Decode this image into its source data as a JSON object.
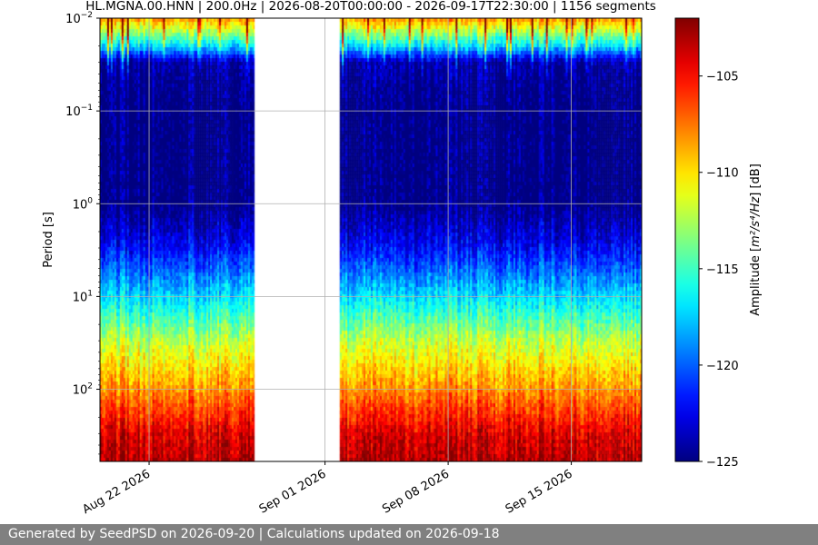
{
  "chart_data": {
    "type": "heatmap",
    "title": "HL.MGNA.00.HNN | 200.0Hz | 2026-08-20T00:00:00 - 2026-09-17T22:30:00 | 1156 segments",
    "ylabel": "Period [s]",
    "y_scale": "log",
    "y_inverted": true,
    "ylim": [
      0.01,
      600
    ],
    "y_ticks": [
      {
        "value": 0.01,
        "base": "10",
        "exp": "−2"
      },
      {
        "value": 0.1,
        "base": "10",
        "exp": "−1"
      },
      {
        "value": 1,
        "base": "10",
        "exp": "0"
      },
      {
        "value": 10,
        "base": "10",
        "exp": "1"
      },
      {
        "value": 100,
        "base": "10",
        "exp": "2"
      }
    ],
    "xlim": [
      "2026-08-19T05:00",
      "2026-09-19T00:00"
    ],
    "x_ticks": [
      {
        "date": "2026-08-22",
        "label": "Aug 22 2026"
      },
      {
        "date": "2026-09-01",
        "label": "Sep 01 2026"
      },
      {
        "date": "2026-09-08",
        "label": "Sep 08 2026"
      },
      {
        "date": "2026-09-15",
        "label": "Sep 15 2026"
      }
    ],
    "data_intervals": [
      {
        "start": "2026-08-19T05:00",
        "end": "2026-08-28T00:00"
      },
      {
        "start": "2026-09-01T20:00",
        "end": "2026-09-19T00:00"
      }
    ],
    "grid": true,
    "colorbar": {
      "label_prefix": "Amplitude [",
      "label_math": "m²/s⁴/Hz",
      "label_suffix": "] [dB]",
      "range": [
        -125,
        -102
      ],
      "ticks": [
        {
          "value": -105,
          "label": "−105"
        },
        {
          "value": -110,
          "label": "−110"
        },
        {
          "value": -115,
          "label": "−115"
        },
        {
          "value": -120,
          "label": "−120"
        },
        {
          "value": -125,
          "label": "−125"
        }
      ],
      "colormap": "jet"
    },
    "amplitude_profile": [
      {
        "period": 0.01,
        "db": -108
      },
      {
        "period": 0.02,
        "db": -117
      },
      {
        "period": 0.03,
        "db": -124
      },
      {
        "period": 0.1,
        "db": -125
      },
      {
        "period": 1,
        "db": -125
      },
      {
        "period": 3,
        "db": -122
      },
      {
        "period": 10,
        "db": -117
      },
      {
        "period": 30,
        "db": -112
      },
      {
        "period": 100,
        "db": -108
      },
      {
        "period": 300,
        "db": -104
      },
      {
        "period": 600,
        "db": -103
      }
    ]
  },
  "footer": {
    "text": "Generated by SeedPSD on 2026-09-20 | Calculations updated on 2026-09-18"
  }
}
